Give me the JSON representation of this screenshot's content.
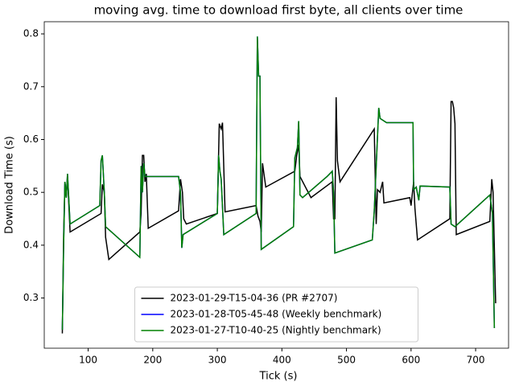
{
  "chart_data": {
    "type": "line",
    "title": "moving avg. time to download first byte, all clients over time",
    "x_label": "Tick (s)",
    "y_label": "Download Time (s)",
    "xlim": [
      32,
      751
    ],
    "ylim": [
      0.205,
      0.823
    ],
    "xticks": [
      100,
      200,
      300,
      400,
      500,
      600,
      700
    ],
    "yticks": [
      0.3,
      0.4,
      0.5,
      0.6,
      0.7,
      0.8
    ],
    "legend": "lower center",
    "series": [
      {
        "name": "2023-01-29-T15-04-36 (PR #2707)",
        "color": "#000000",
        "x": [
          60,
          62,
          64,
          66,
          68,
          72,
          120,
          122,
          125,
          127,
          132,
          180,
          182,
          184,
          186,
          188,
          190,
          193,
          240,
          243,
          246,
          248,
          252,
          300,
          303,
          306,
          308,
          312,
          360,
          363,
          366,
          368,
          370,
          375,
          420,
          423,
          426,
          428,
          445,
          478,
          480,
          482,
          484,
          486,
          490,
          543,
          546,
          548,
          552,
          556,
          558,
          598,
          600,
          604,
          606,
          610,
          660,
          662,
          664,
          666,
          668,
          670,
          722,
          725,
          727,
          731
        ],
        "values": [
          0.233,
          0.42,
          0.52,
          0.49,
          0.53,
          0.425,
          0.46,
          0.515,
          0.5,
          0.415,
          0.373,
          0.425,
          0.46,
          0.57,
          0.57,
          0.52,
          0.535,
          0.432,
          0.465,
          0.525,
          0.5,
          0.45,
          0.44,
          0.46,
          0.63,
          0.62,
          0.632,
          0.463,
          0.475,
          0.455,
          0.445,
          0.425,
          0.555,
          0.51,
          0.54,
          0.57,
          0.59,
          0.53,
          0.49,
          0.52,
          0.45,
          0.45,
          0.68,
          0.56,
          0.52,
          0.62,
          0.44,
          0.505,
          0.5,
          0.52,
          0.48,
          0.49,
          0.475,
          0.52,
          0.47,
          0.41,
          0.45,
          0.672,
          0.672,
          0.66,
          0.63,
          0.42,
          0.445,
          0.525,
          0.5,
          0.29
        ]
      },
      {
        "name": "2023-01-28-T05-45-48 (Weekly benchmark)",
        "color": "#0000ff",
        "x": [
          60,
          62,
          64,
          66,
          68,
          72,
          118,
          120,
          122,
          125,
          127,
          180,
          182,
          184,
          186,
          188,
          240,
          243,
          245,
          247,
          300,
          302,
          304,
          306,
          310,
          360,
          362,
          364,
          366,
          368,
          418,
          420,
          424,
          426,
          428,
          432,
          470,
          478,
          480,
          482,
          540,
          543,
          550,
          552,
          562,
          603,
          604,
          608,
          612,
          614,
          660,
          662,
          668,
          722,
          726,
          729
        ],
        "values": [
          0.24,
          0.4,
          0.52,
          0.49,
          0.535,
          0.44,
          0.475,
          0.56,
          0.57,
          0.5,
          0.435,
          0.377,
          0.55,
          0.5,
          0.555,
          0.53,
          0.53,
          0.5,
          0.395,
          0.42,
          0.46,
          0.57,
          0.54,
          0.525,
          0.42,
          0.46,
          0.795,
          0.72,
          0.72,
          0.392,
          0.435,
          0.565,
          0.585,
          0.635,
          0.495,
          0.49,
          0.53,
          0.54,
          0.5,
          0.385,
          0.41,
          0.465,
          0.66,
          0.64,
          0.632,
          0.632,
          0.505,
          0.51,
          0.485,
          0.512,
          0.51,
          0.44,
          0.435,
          0.495,
          0.46,
          0.243
        ]
      },
      {
        "name": "2023-01-27-T10-40-25 (Nightly benchmark)",
        "color": "#008000",
        "x": [
          60,
          62,
          64,
          66,
          68,
          72,
          118,
          120,
          122,
          125,
          127,
          180,
          182,
          184,
          186,
          188,
          240,
          243,
          245,
          247,
          300,
          302,
          304,
          306,
          310,
          360,
          362,
          364,
          366,
          368,
          418,
          420,
          424,
          426,
          428,
          432,
          470,
          478,
          480,
          482,
          540,
          543,
          550,
          552,
          562,
          603,
          604,
          608,
          612,
          614,
          660,
          662,
          668,
          722,
          726,
          729
        ],
        "values": [
          0.24,
          0.4,
          0.52,
          0.49,
          0.535,
          0.44,
          0.475,
          0.56,
          0.57,
          0.5,
          0.435,
          0.377,
          0.55,
          0.5,
          0.555,
          0.53,
          0.53,
          0.5,
          0.395,
          0.42,
          0.46,
          0.57,
          0.54,
          0.525,
          0.42,
          0.46,
          0.795,
          0.72,
          0.72,
          0.392,
          0.435,
          0.565,
          0.585,
          0.635,
          0.495,
          0.49,
          0.53,
          0.54,
          0.5,
          0.385,
          0.41,
          0.465,
          0.66,
          0.64,
          0.632,
          0.632,
          0.505,
          0.51,
          0.485,
          0.512,
          0.51,
          0.44,
          0.435,
          0.495,
          0.46,
          0.243
        ]
      }
    ]
  }
}
